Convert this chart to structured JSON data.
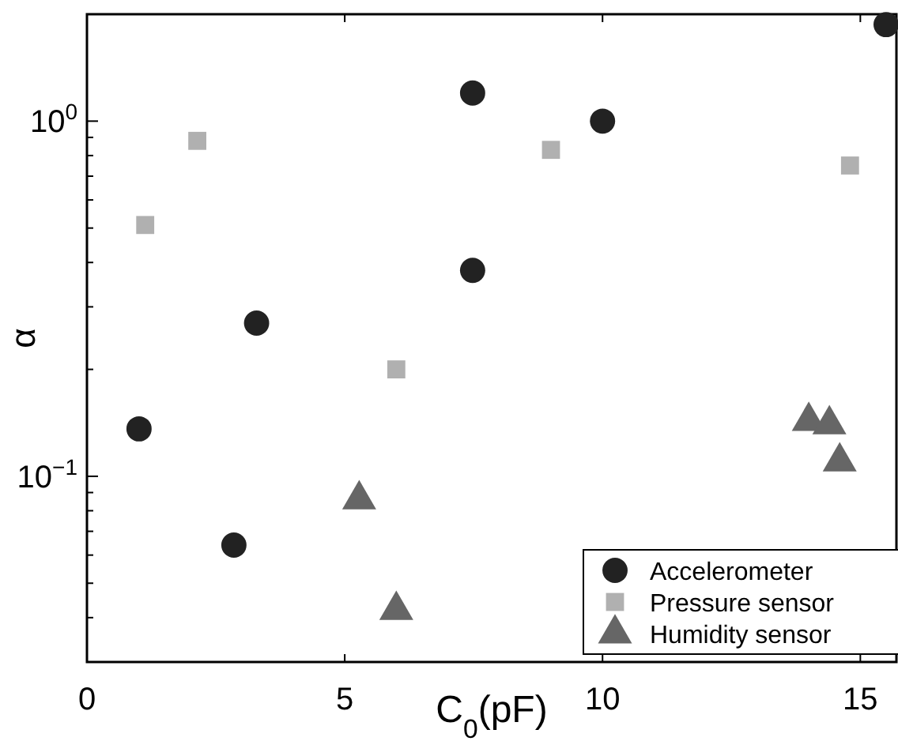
{
  "chart_data": {
    "type": "scatter",
    "xlabel": "C$_{0}$(pF)",
    "ylabel": "α",
    "log": "y",
    "grid": false,
    "legend": "bottom right",
    "xlim": [
      0,
      15.7
    ],
    "xticks": [
      0,
      5,
      10,
      15
    ],
    "ylim": [
      0.03,
      2
    ],
    "yticks": [
      {
        "value": 0.03,
        "label": null
      },
      {
        "value": 0.04,
        "label": null
      },
      {
        "value": 0.05,
        "label": null
      },
      {
        "value": 0.06,
        "label": null
      },
      {
        "value": 0.07,
        "label": null
      },
      {
        "value": 0.08,
        "label": null
      },
      {
        "value": 0.09,
        "label": null
      },
      {
        "value": 0.1,
        "label": "10$^{−1}$"
      },
      {
        "value": 0.2,
        "label": null
      },
      {
        "value": 0.3,
        "label": null
      },
      {
        "value": 0.4,
        "label": null
      },
      {
        "value": 0.5,
        "label": null
      },
      {
        "value": 0.6,
        "label": null
      },
      {
        "value": 0.7,
        "label": null
      },
      {
        "value": 0.8,
        "label": null
      },
      {
        "value": 0.9,
        "label": null
      },
      {
        "value": 1,
        "label": "10$^{0}$"
      },
      {
        "value": 2,
        "label": null
      }
    ],
    "series": [
      {
        "name": "Accelerometer",
        "color": "#222222",
        "marker": "circle",
        "x": [
          1.01,
          2.85,
          3.29,
          7.48,
          7.48,
          10.0,
          15.5
        ],
        "values": [
          0.136,
          0.064,
          0.27,
          1.2,
          0.38,
          1.0,
          1.87
        ]
      },
      {
        "name": "Pressure sensor",
        "color": "#b0b0b0",
        "marker": "square",
        "x": [
          1.13,
          2.14,
          6.0,
          9.0,
          14.8
        ],
        "values": [
          0.51,
          0.88,
          0.2,
          0.83,
          0.75
        ]
      },
      {
        "name": "Humidity sensor",
        "color": "#666666",
        "marker": "triangle",
        "x": [
          5.28,
          6.0,
          14.0,
          14.4,
          14.6
        ],
        "values": [
          0.086,
          0.042,
          0.143,
          0.14,
          0.11
        ]
      }
    ]
  }
}
